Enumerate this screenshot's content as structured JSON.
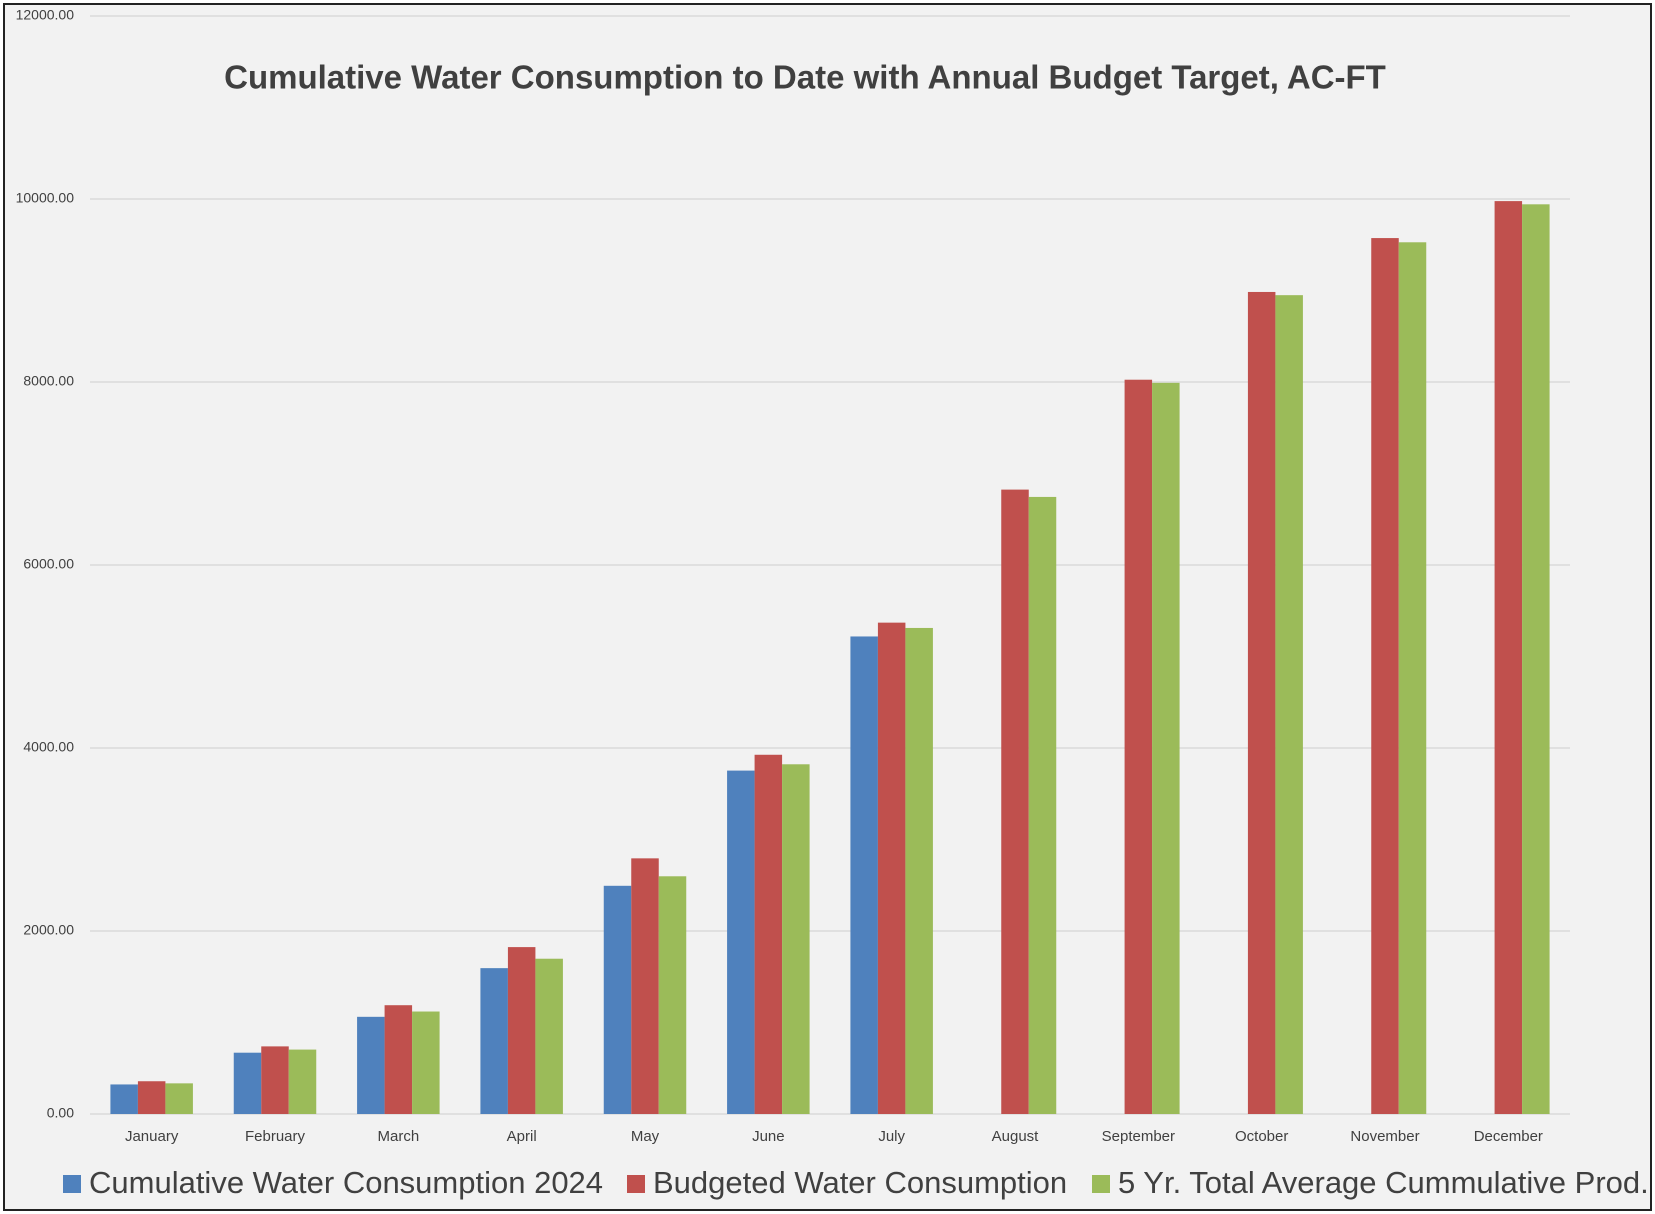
{
  "chart_data": {
    "type": "bar",
    "title": "Cumulative Water Consumption to Date with Annual Budget Target, AC-FT",
    "categories": [
      "January",
      "February",
      "March",
      "April",
      "May",
      "June",
      "July",
      "August",
      "September",
      "October",
      "November",
      "December"
    ],
    "series": [
      {
        "name": "Cumulative Water Consumption 2024",
        "color": "#4f81bd",
        "values": [
          323,
          670,
          1062,
          1594,
          2494,
          3753,
          5219,
          null,
          null,
          null,
          null,
          null
        ]
      },
      {
        "name": "Budgeted Water Consumption",
        "color": "#c0504d",
        "values": [
          358,
          739,
          1189,
          1824,
          2794,
          3926,
          5370,
          6824,
          8025,
          8984,
          9573,
          9977
        ]
      },
      {
        "name": "5 Yr. Total Average Cummulative Prod.",
        "color": "#9bbb59",
        "values": [
          335,
          704,
          1120,
          1697,
          2598,
          3822,
          5312,
          6744,
          7991,
          8949,
          9527,
          9942
        ]
      }
    ],
    "ylim": [
      0,
      12000
    ],
    "yticks": [
      {
        "value": 0,
        "label": "0.00"
      },
      {
        "value": 2000,
        "label": "2000.00"
      },
      {
        "value": 4000,
        "label": "4000.00"
      },
      {
        "value": 6000,
        "label": "6000.00"
      },
      {
        "value": 8000,
        "label": "8000.00"
      },
      {
        "value": 10000,
        "label": "10000.00"
      },
      {
        "value": 12000,
        "label": "12000.00"
      }
    ],
    "grid": true,
    "legend": "bottom"
  }
}
